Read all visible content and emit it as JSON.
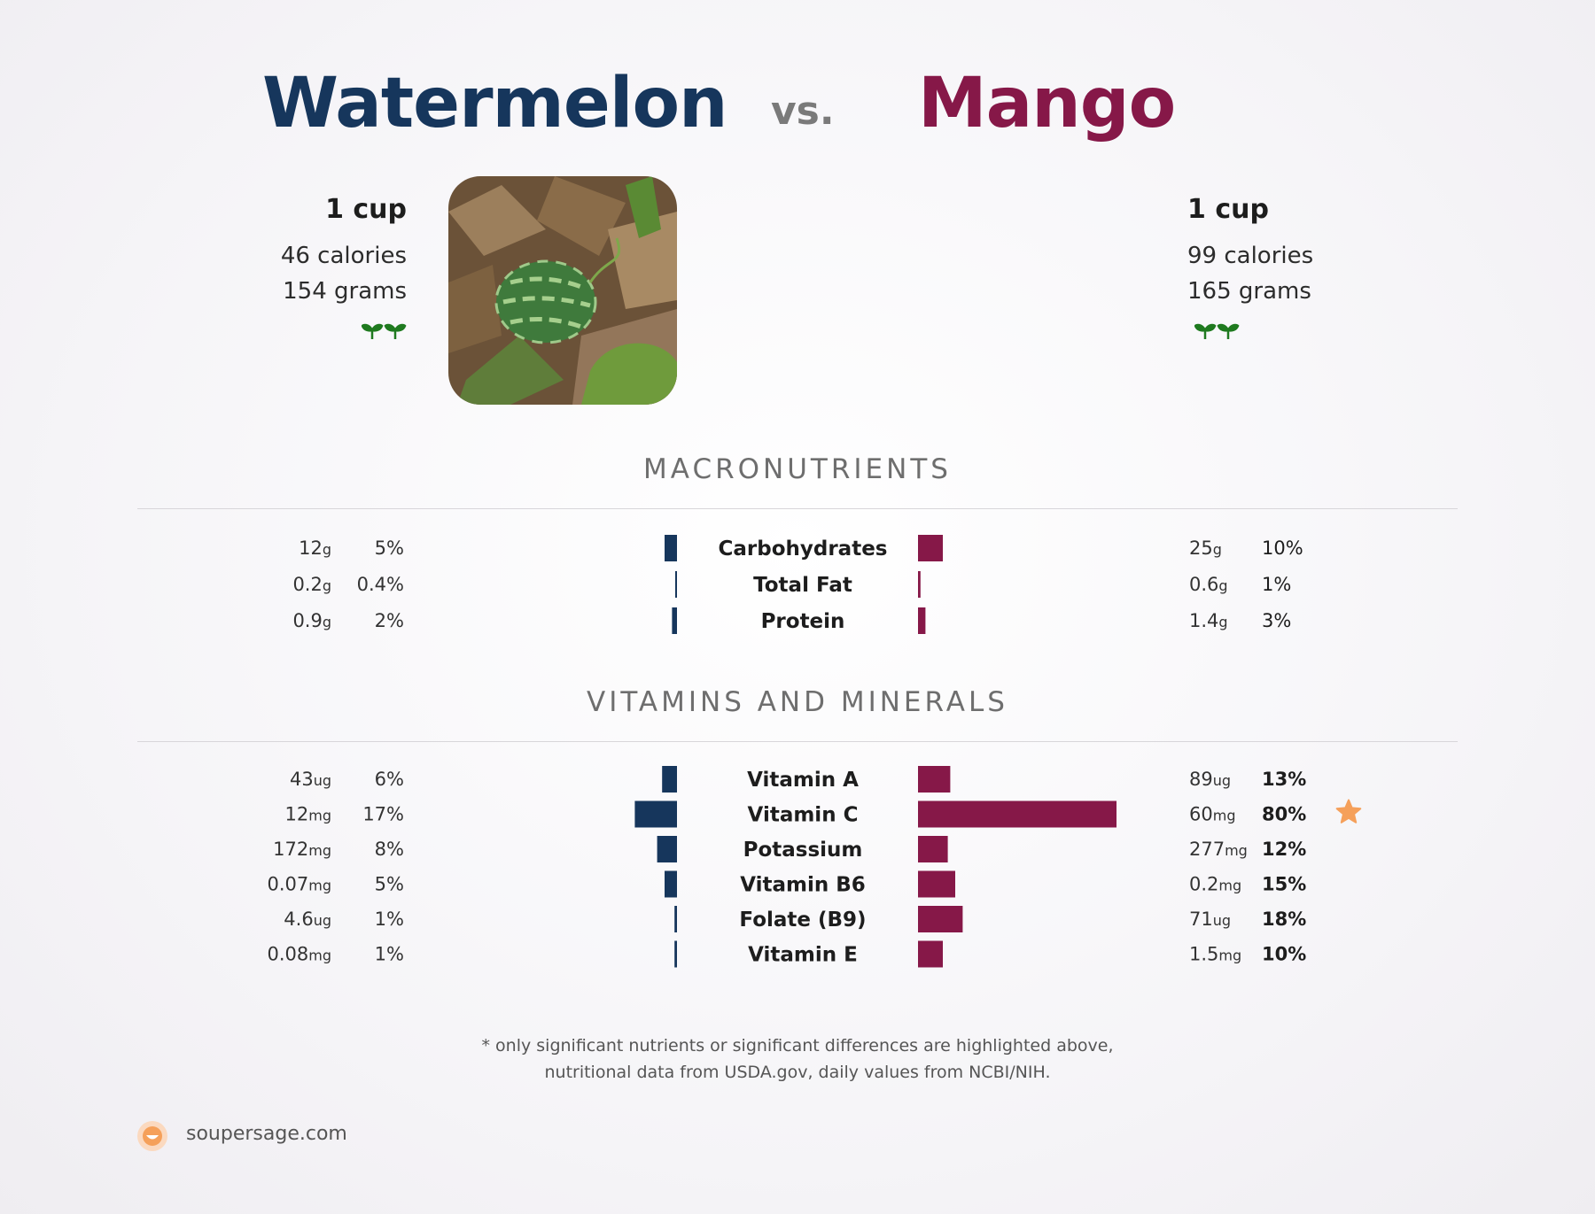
{
  "header": {
    "left_food": "Watermelon",
    "vs": "vs.",
    "right_food": "Mango"
  },
  "left": {
    "serving": "1 cup",
    "calories": "46 calories",
    "grams": "154 grams",
    "badge_icon": "sprout-icon"
  },
  "right": {
    "serving": "1 cup",
    "calories": "99 calories",
    "grams": "165 grams",
    "badge_icon": "sprout-icon"
  },
  "colors": {
    "left": "#16365c",
    "right": "#861848",
    "star": "#f5a05a"
  },
  "sections": {
    "macros": "MACRONUTRIENTS",
    "vitamins": "VITAMINS AND MINERALS"
  },
  "footnote": {
    "line1": "* only significant nutrients or significant differences are highlighted above,",
    "line2": "nutritional data from USDA.gov, daily values from NCBI/NIH."
  },
  "brand": {
    "text": "soupersage.com",
    "icon": "soupersage-logo-icon"
  },
  "chart_data": [
    {
      "type": "bar",
      "title": "MACRONUTRIENTS",
      "series": [
        {
          "name": "Watermelon",
          "values": [
            5,
            0.4,
            2
          ]
        },
        {
          "name": "Mango",
          "values": [
            10,
            1,
            3
          ]
        }
      ],
      "rows": [
        {
          "nutrient": "Carbohydrates",
          "left_amount": "12",
          "left_unit": "g",
          "left_pct": "5%",
          "left_value": 5,
          "right_amount": "25",
          "right_unit": "g",
          "right_pct": "10%",
          "right_value": 10,
          "right_bold": false,
          "star": false
        },
        {
          "nutrient": "Total Fat",
          "left_amount": "0.2",
          "left_unit": "g",
          "left_pct": "0.4%",
          "left_value": 0.4,
          "right_amount": "0.6",
          "right_unit": "g",
          "right_pct": "1%",
          "right_value": 1,
          "right_bold": false,
          "star": false
        },
        {
          "nutrient": "Protein",
          "left_amount": "0.9",
          "left_unit": "g",
          "left_pct": "2%",
          "left_value": 2,
          "right_amount": "1.4",
          "right_unit": "g",
          "right_pct": "3%",
          "right_value": 3,
          "right_bold": false,
          "star": false
        }
      ]
    },
    {
      "type": "bar",
      "title": "VITAMINS AND MINERALS",
      "series": [
        {
          "name": "Watermelon",
          "values": [
            6,
            17,
            8,
            5,
            1,
            1
          ]
        },
        {
          "name": "Mango",
          "values": [
            13,
            80,
            12,
            15,
            18,
            10
          ]
        }
      ],
      "rows": [
        {
          "nutrient": "Vitamin A",
          "left_amount": "43",
          "left_unit": "ug",
          "left_pct": "6%",
          "left_value": 6,
          "right_amount": "89",
          "right_unit": "ug",
          "right_pct": "13%",
          "right_value": 13,
          "right_bold": true,
          "star": false
        },
        {
          "nutrient": "Vitamin C",
          "left_amount": "12",
          "left_unit": "mg",
          "left_pct": "17%",
          "left_value": 17,
          "right_amount": "60",
          "right_unit": "mg",
          "right_pct": "80%",
          "right_value": 80,
          "right_bold": true,
          "star": true
        },
        {
          "nutrient": "Potassium",
          "left_amount": "172",
          "left_unit": "mg",
          "left_pct": "8%",
          "left_value": 8,
          "right_amount": "277",
          "right_unit": "mg",
          "right_pct": "12%",
          "right_value": 12,
          "right_bold": true,
          "star": false
        },
        {
          "nutrient": "Vitamin B6",
          "left_amount": "0.07",
          "left_unit": "mg",
          "left_pct": "5%",
          "left_value": 5,
          "right_amount": "0.2",
          "right_unit": "mg",
          "right_pct": "15%",
          "right_value": 15,
          "right_bold": true,
          "star": false
        },
        {
          "nutrient": "Folate (B9)",
          "left_amount": "4.6",
          "left_unit": "ug",
          "left_pct": "1%",
          "left_value": 1,
          "right_amount": "71",
          "right_unit": "ug",
          "right_pct": "18%",
          "right_value": 18,
          "right_bold": true,
          "star": false
        },
        {
          "nutrient": "Vitamin E",
          "left_amount": "0.08",
          "left_unit": "mg",
          "left_pct": "1%",
          "left_value": 1,
          "right_amount": "1.5",
          "right_unit": "mg",
          "right_pct": "10%",
          "right_value": 10,
          "right_bold": true,
          "star": false
        }
      ]
    }
  ]
}
